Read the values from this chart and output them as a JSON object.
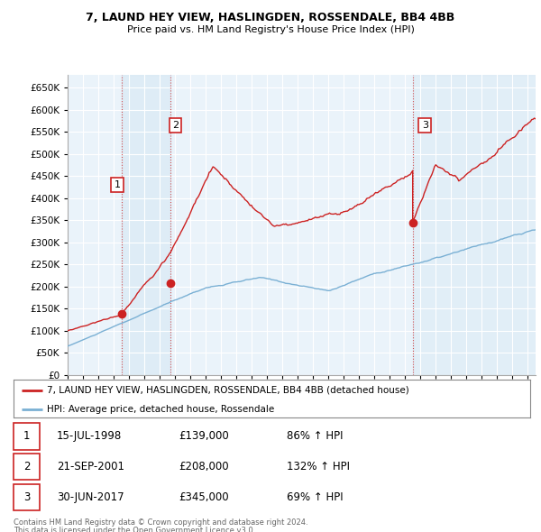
{
  "title": "7, LAUND HEY VIEW, HASLINGDEN, ROSSENDALE, BB4 4BB",
  "subtitle": "Price paid vs. HM Land Registry's House Price Index (HPI)",
  "legend_line1": "7, LAUND HEY VIEW, HASLINGDEN, ROSSENDALE, BB4 4BB (detached house)",
  "legend_line2": "HPI: Average price, detached house, Rossendale",
  "footer1": "Contains HM Land Registry data © Crown copyright and database right 2024.",
  "footer2": "This data is licensed under the Open Government Licence v3.0.",
  "sale_color": "#cc2222",
  "hpi_color": "#7ab0d4",
  "shade_color": "#daeaf5",
  "ylim": [
    0,
    680000
  ],
  "yticks": [
    0,
    50000,
    100000,
    150000,
    200000,
    250000,
    300000,
    350000,
    400000,
    450000,
    500000,
    550000,
    600000,
    650000
  ],
  "xmin": 1995,
  "xmax": 2025.5,
  "background_color": "#ffffff",
  "grid_color": "#cccccc",
  "marker_years": [
    1998.54,
    2001.72,
    2017.49
  ],
  "marker_prices": [
    139000,
    208000,
    345000
  ],
  "transactions": [
    {
      "num": 1,
      "date": "15-JUL-1998",
      "price": 139000,
      "pct": "86%",
      "dir": "↑"
    },
    {
      "num": 2,
      "date": "21-SEP-2001",
      "price": 208000,
      "pct": "132%",
      "dir": "↑"
    },
    {
      "num": 3,
      "date": "30-JUN-2017",
      "price": 345000,
      "pct": "69%",
      "dir": "↑"
    }
  ]
}
